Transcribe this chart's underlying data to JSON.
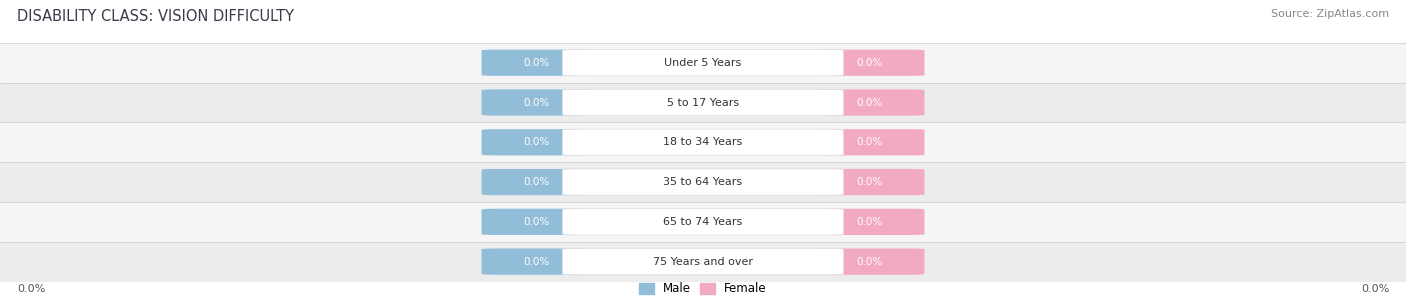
{
  "title": "DISABILITY CLASS: VISION DIFFICULTY",
  "source_text": "Source: ZipAtlas.com",
  "categories": [
    "Under 5 Years",
    "5 to 17 Years",
    "18 to 34 Years",
    "35 to 64 Years",
    "65 to 74 Years",
    "75 Years and over"
  ],
  "male_values": [
    0.0,
    0.0,
    0.0,
    0.0,
    0.0,
    0.0
  ],
  "female_values": [
    0.0,
    0.0,
    0.0,
    0.0,
    0.0,
    0.0
  ],
  "male_color": "#92bdd9",
  "female_color": "#f2aac0",
  "row_colors": [
    "#f5f5f5",
    "#ececec"
  ],
  "title_color": "#3a3a4a",
  "source_color": "#888888",
  "axis_label_color": "#555555",
  "legend_male_color": "#92bdd9",
  "legend_female_color": "#f2aac0",
  "center_label_bg": "#ffffff",
  "center_label_color": "#333333",
  "value_label_color": "#ffffff",
  "figsize": [
    14.06,
    3.06
  ],
  "dpi": 100
}
